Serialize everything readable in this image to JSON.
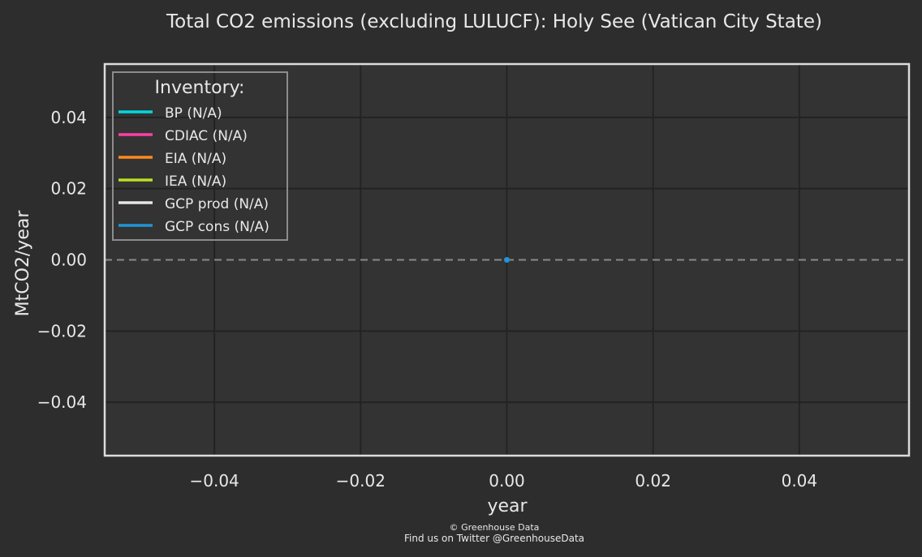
{
  "chart_data": {
    "type": "line",
    "title": "Total CO2 emissions (excluding LULUCF): Holy See (Vatican City State)",
    "xlabel": "year",
    "ylabel": "MtCO2/year",
    "xlim": [
      -0.055,
      0.055
    ],
    "ylim": [
      -0.055,
      0.055
    ],
    "xticks": [
      -0.04,
      -0.02,
      0.0,
      0.02,
      0.04
    ],
    "yticks": [
      -0.04,
      -0.02,
      0.0,
      0.02,
      0.04
    ],
    "xtick_labels": [
      "−0.04",
      "−0.02",
      "0.00",
      "0.02",
      "0.04"
    ],
    "ytick_labels": [
      "−0.04",
      "−0.02",
      "0.00",
      "0.02",
      "0.04"
    ],
    "grid": true,
    "reference_line": {
      "y": 0,
      "style": "dashed",
      "color": "#8a8a8a"
    },
    "legend": {
      "title": "Inventory:",
      "placement": "top-left"
    },
    "series": [
      {
        "name": "BP (N/A)",
        "color": "#00d8e0",
        "x": [],
        "y": []
      },
      {
        "name": "CDIAC (N/A)",
        "color": "#ff3fa4",
        "x": [],
        "y": []
      },
      {
        "name": "EIA (N/A)",
        "color": "#ff8a1e",
        "x": [],
        "y": []
      },
      {
        "name": "IEA (N/A)",
        "color": "#b9e020",
        "x": [],
        "y": []
      },
      {
        "name": "GCP prod (N/A)",
        "color": "#e6e6e6",
        "x": [],
        "y": []
      },
      {
        "name": "GCP cons (N/A)",
        "color": "#1f96d8",
        "x": [
          0
        ],
        "y": [
          0
        ]
      }
    ]
  },
  "footer": {
    "copyright": "© Greenhouse Data",
    "twitter": "Find us on Twitter @GreenhouseData"
  },
  "colors": {
    "background": "#2d2d2d",
    "plot_background": "#333333",
    "grid": "#232323",
    "frame": "#dcdcdc",
    "text": "#e8e8e8",
    "footer_text": "#9a9a9a"
  }
}
